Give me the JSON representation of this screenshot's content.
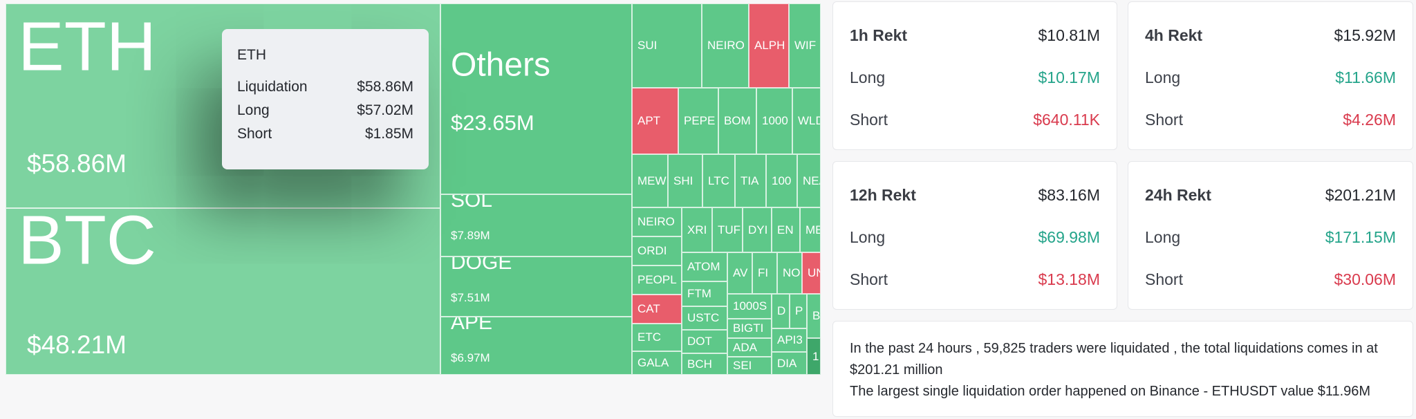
{
  "treemap": {
    "tiles": [
      {
        "sym": "ETH",
        "val": "$58.86M",
        "color": "lg"
      },
      {
        "sym": "BTC",
        "val": "$48.21M",
        "color": "lg"
      },
      {
        "sym": "Others",
        "val": "$23.65M",
        "color": "g"
      },
      {
        "sym": "SOL",
        "val": "$7.89M",
        "color": "g"
      },
      {
        "sym": "DOGE",
        "val": "$7.51M",
        "color": "g"
      },
      {
        "sym": "APE",
        "val": "$6.97M",
        "color": "g"
      },
      {
        "sym": "SUI",
        "color": "g"
      },
      {
        "sym": "NEIRO",
        "color": "g"
      },
      {
        "sym": "ALPH",
        "color": "r"
      },
      {
        "sym": "WIF",
        "color": "g"
      },
      {
        "sym": "APT",
        "color": "r"
      },
      {
        "sym": "PEPE",
        "color": "g"
      },
      {
        "sym": "BOM",
        "color": "g"
      },
      {
        "sym": "1000",
        "color": "g"
      },
      {
        "sym": "WLD",
        "color": "g"
      },
      {
        "sym": "MEW",
        "color": "g"
      },
      {
        "sym": "SHI",
        "color": "g"
      },
      {
        "sym": "LTC",
        "color": "g"
      },
      {
        "sym": "TIA",
        "color": "g"
      },
      {
        "sym": "100",
        "color": "g"
      },
      {
        "sym": "NEA",
        "color": "g"
      },
      {
        "sym": "NEIRO",
        "color": "g"
      },
      {
        "sym": "ORDI",
        "color": "g"
      },
      {
        "sym": "PEOPL",
        "color": "g"
      },
      {
        "sym": "CAT",
        "color": "r"
      },
      {
        "sym": "ETC",
        "color": "g"
      },
      {
        "sym": "GALA",
        "color": "g"
      },
      {
        "sym": "XRI",
        "color": "g"
      },
      {
        "sym": "TUF",
        "color": "g"
      },
      {
        "sym": "DYI",
        "color": "g"
      },
      {
        "sym": "EN",
        "color": "g"
      },
      {
        "sym": "ME",
        "color": "g"
      },
      {
        "sym": "ATOM",
        "color": "g"
      },
      {
        "sym": "AV",
        "color": "g"
      },
      {
        "sym": "FI",
        "color": "g"
      },
      {
        "sym": "NO",
        "color": "g"
      },
      {
        "sym": "UN",
        "color": "r"
      },
      {
        "sym": "FTM",
        "color": "g"
      },
      {
        "sym": "1000S",
        "color": "g"
      },
      {
        "sym": "D",
        "color": "g"
      },
      {
        "sym": "P",
        "color": "g"
      },
      {
        "sym": "B",
        "color": "g"
      },
      {
        "sym": "USTC",
        "color": "g"
      },
      {
        "sym": "BIGTI",
        "color": "g"
      },
      {
        "sym": "DOT",
        "color": "g"
      },
      {
        "sym": "ADA",
        "color": "g"
      },
      {
        "sym": "API3",
        "color": "g"
      },
      {
        "sym": "1",
        "color": "dg"
      },
      {
        "sym": "BCH",
        "color": "g"
      },
      {
        "sym": "SEI",
        "color": "g"
      },
      {
        "sym": "DIA",
        "color": "g"
      }
    ],
    "tooltip": {
      "title": "ETH",
      "rows": [
        {
          "label": "Liquidation",
          "value": "$58.86M"
        },
        {
          "label": "Long",
          "value": "$57.02M"
        },
        {
          "label": "Short",
          "value": "$1.85M"
        }
      ]
    }
  },
  "cards": [
    {
      "title": "1h Rekt",
      "total": "$10.81M",
      "long_label": "Long",
      "long": "$10.17M",
      "short_label": "Short",
      "short": "$640.11K"
    },
    {
      "title": "4h Rekt",
      "total": "$15.92M",
      "long_label": "Long",
      "long": "$11.66M",
      "short_label": "Short",
      "short": "$4.26M"
    },
    {
      "title": "12h Rekt",
      "total": "$83.16M",
      "long_label": "Long",
      "long": "$69.98M",
      "short_label": "Short",
      "short": "$13.18M"
    },
    {
      "title": "24h Rekt",
      "total": "$201.21M",
      "long_label": "Long",
      "long": "$171.15M",
      "short_label": "Short",
      "short": "$30.06M"
    }
  ],
  "summary": {
    "line1": "In the past 24 hours , 59,825 traders were liquidated , the total liquidations comes in at $201.21 million",
    "line2": "The largest single liquidation order happened on Binance - ETHUSDT value $11.96M"
  },
  "colors": {
    "long": "#24a48a",
    "short": "#d93a4d",
    "tile_green": "#5ec889",
    "tile_red": "#e85d6b"
  }
}
